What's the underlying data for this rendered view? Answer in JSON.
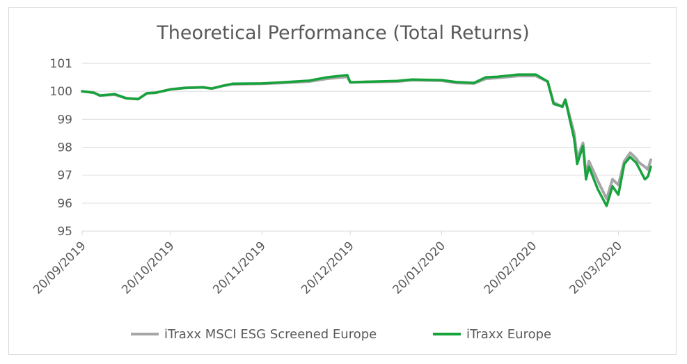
{
  "chart_data": {
    "type": "line",
    "title": "Theoretical Performance (Total Returns)",
    "xlabel": "",
    "ylabel": "",
    "ylim": [
      95,
      101
    ],
    "yticks": [
      95,
      96,
      97,
      98,
      99,
      100,
      101
    ],
    "x_range": [
      "20/09/2019",
      "31/03/2020"
    ],
    "xticks": [
      "20/09/2019",
      "20/10/2019",
      "20/11/2019",
      "20/12/2019",
      "20/01/2020",
      "20/02/2020",
      "20/03/2020"
    ],
    "grid": "horizontal",
    "legend": "bottom",
    "series": [
      {
        "name": "iTraxx MSCI ESG Screened Europe",
        "color": "#a6a6a6",
        "points": [
          [
            "20/09/2019",
            100.0
          ],
          [
            "24/09/2019",
            99.95
          ],
          [
            "26/09/2019",
            99.85
          ],
          [
            "01/10/2019",
            99.88
          ],
          [
            "05/10/2019",
            99.75
          ],
          [
            "09/10/2019",
            99.72
          ],
          [
            "12/10/2019",
            99.93
          ],
          [
            "15/10/2019",
            99.95
          ],
          [
            "20/10/2019",
            100.07
          ],
          [
            "25/10/2019",
            100.12
          ],
          [
            "31/10/2019",
            100.14
          ],
          [
            "03/11/2019",
            100.1
          ],
          [
            "07/11/2019",
            100.2
          ],
          [
            "10/11/2019",
            100.25
          ],
          [
            "20/11/2019",
            100.27
          ],
          [
            "27/11/2019",
            100.3
          ],
          [
            "06/12/2019",
            100.35
          ],
          [
            "12/12/2019",
            100.45
          ],
          [
            "19/12/2019",
            100.52
          ],
          [
            "20/12/2019",
            100.32
          ],
          [
            "25/12/2019",
            100.33
          ],
          [
            "05/01/2020",
            100.35
          ],
          [
            "10/01/2020",
            100.4
          ],
          [
            "20/01/2020",
            100.38
          ],
          [
            "25/01/2020",
            100.3
          ],
          [
            "31/01/2020",
            100.28
          ],
          [
            "04/02/2020",
            100.45
          ],
          [
            "08/02/2020",
            100.48
          ],
          [
            "15/02/2020",
            100.55
          ],
          [
            "21/02/2020",
            100.55
          ],
          [
            "25/02/2020",
            100.35
          ],
          [
            "27/02/2020",
            99.6
          ],
          [
            "01/03/2020",
            99.45
          ],
          [
            "02/03/2020",
            99.7
          ],
          [
            "05/03/2020",
            98.5
          ],
          [
            "06/03/2020",
            97.6
          ],
          [
            "08/03/2020",
            98.15
          ],
          [
            "09/03/2020",
            97.0
          ],
          [
            "10/03/2020",
            97.5
          ],
          [
            "13/03/2020",
            96.8
          ],
          [
            "16/03/2020",
            96.15
          ],
          [
            "18/03/2020",
            96.85
          ],
          [
            "20/03/2020",
            96.65
          ],
          [
            "22/03/2020",
            97.5
          ],
          [
            "24/03/2020",
            97.8
          ],
          [
            "26/03/2020",
            97.6
          ],
          [
            "27/03/2020",
            97.45
          ],
          [
            "29/03/2020",
            97.3
          ],
          [
            "30/03/2020",
            97.2
          ],
          [
            "31/03/2020",
            97.55
          ]
        ]
      },
      {
        "name": "iTraxx Europe",
        "color": "#17a33c",
        "points": [
          [
            "20/09/2019",
            100.0
          ],
          [
            "24/09/2019",
            99.95
          ],
          [
            "26/09/2019",
            99.85
          ],
          [
            "01/10/2019",
            99.9
          ],
          [
            "05/10/2019",
            99.75
          ],
          [
            "09/10/2019",
            99.72
          ],
          [
            "12/10/2019",
            99.93
          ],
          [
            "15/10/2019",
            99.95
          ],
          [
            "20/10/2019",
            100.07
          ],
          [
            "25/10/2019",
            100.12
          ],
          [
            "31/10/2019",
            100.14
          ],
          [
            "03/11/2019",
            100.1
          ],
          [
            "07/11/2019",
            100.2
          ],
          [
            "10/11/2019",
            100.27
          ],
          [
            "20/11/2019",
            100.28
          ],
          [
            "27/11/2019",
            100.32
          ],
          [
            "06/12/2019",
            100.38
          ],
          [
            "12/12/2019",
            100.5
          ],
          [
            "19/12/2019",
            100.58
          ],
          [
            "20/12/2019",
            100.32
          ],
          [
            "25/12/2019",
            100.34
          ],
          [
            "05/01/2020",
            100.37
          ],
          [
            "10/01/2020",
            100.42
          ],
          [
            "20/01/2020",
            100.4
          ],
          [
            "25/01/2020",
            100.33
          ],
          [
            "31/01/2020",
            100.3
          ],
          [
            "04/02/2020",
            100.5
          ],
          [
            "08/02/2020",
            100.52
          ],
          [
            "15/02/2020",
            100.6
          ],
          [
            "21/02/2020",
            100.6
          ],
          [
            "25/02/2020",
            100.35
          ],
          [
            "27/02/2020",
            99.55
          ],
          [
            "01/03/2020",
            99.45
          ],
          [
            "02/03/2020",
            99.7
          ],
          [
            "05/03/2020",
            98.3
          ],
          [
            "06/03/2020",
            97.4
          ],
          [
            "08/03/2020",
            98.05
          ],
          [
            "09/03/2020",
            96.85
          ],
          [
            "10/03/2020",
            97.3
          ],
          [
            "13/03/2020",
            96.5
          ],
          [
            "16/03/2020",
            95.9
          ],
          [
            "18/03/2020",
            96.6
          ],
          [
            "20/03/2020",
            96.3
          ],
          [
            "22/03/2020",
            97.4
          ],
          [
            "24/03/2020",
            97.65
          ],
          [
            "26/03/2020",
            97.45
          ],
          [
            "27/03/2020",
            97.25
          ],
          [
            "29/03/2020",
            96.85
          ],
          [
            "30/03/2020",
            96.95
          ],
          [
            "31/03/2020",
            97.3
          ]
        ]
      }
    ]
  }
}
